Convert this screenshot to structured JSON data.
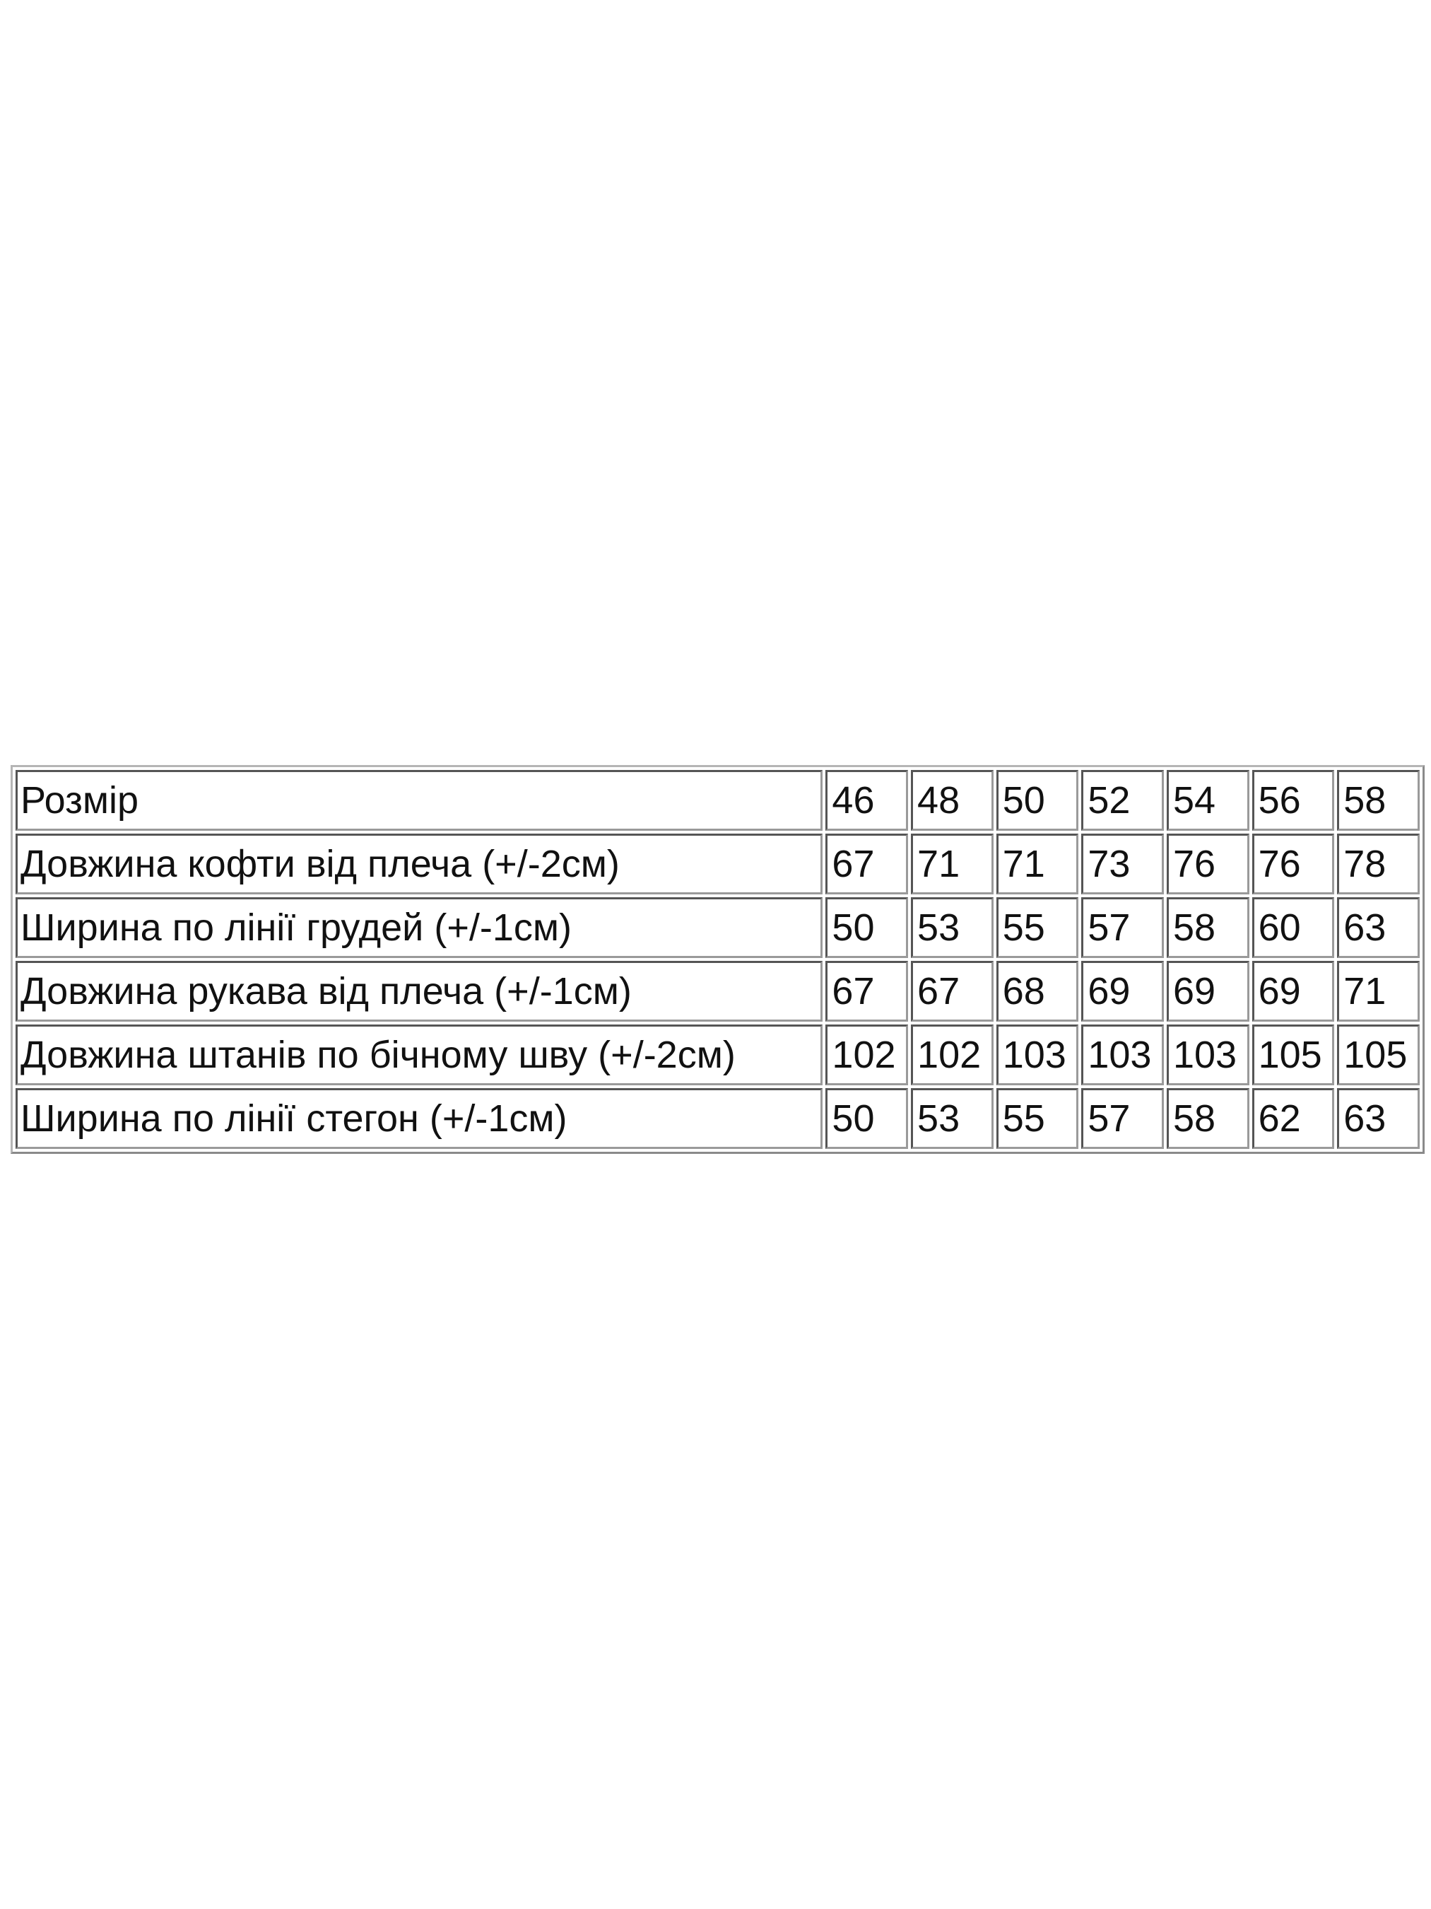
{
  "size_chart": {
    "sizes": [
      "46",
      "48",
      "50",
      "52",
      "54",
      "56",
      "58"
    ],
    "header_label": "Розмір",
    "rows": [
      {
        "label": "Довжина кофти від плеча (+/-2см)",
        "values": [
          "67",
          "71",
          "71",
          "73",
          "76",
          "76",
          "78"
        ]
      },
      {
        "label": "Ширина по лінії грудей (+/-1см)",
        "values": [
          "50",
          "53",
          "55",
          "57",
          "58",
          "60",
          "63"
        ]
      },
      {
        "label": "Довжина рукава від плеча  (+/-1см)",
        "values": [
          "67",
          "67",
          "68",
          "69",
          "69",
          "69",
          "71"
        ]
      },
      {
        "label": "Довжина штанів по бічному шву (+/-2см)",
        "values": [
          "102",
          "102",
          "103",
          "103",
          "103",
          "105",
          "105"
        ]
      },
      {
        "label": "Ширина по лінії стегон (+/-1см)",
        "values": [
          "50",
          "53",
          "55",
          "57",
          "58",
          "62",
          "63"
        ]
      }
    ]
  }
}
